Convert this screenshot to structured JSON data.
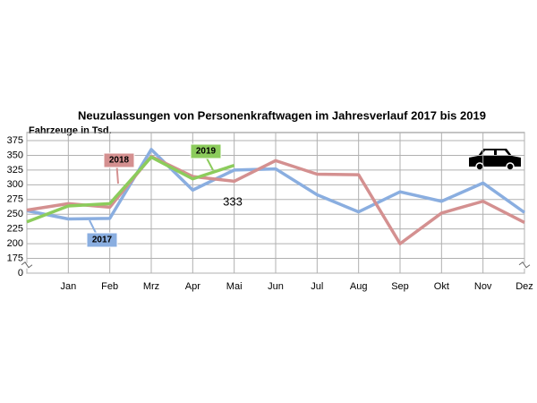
{
  "chart_data": {
    "type": "line",
    "title": "Neuzulassungen von Personenkraftwagen im Jahresverlauf 2017 bis 2019",
    "y_label": "Fahrzeuge in Tsd.",
    "categories": [
      null,
      "Jan",
      "Feb",
      "Mrz",
      "Apr",
      "Mai",
      "Jun",
      "Jul",
      "Aug",
      "Sep",
      "Okt",
      "Nov",
      "Dez"
    ],
    "series": [
      {
        "name": "2017",
        "color": "#8aaee0",
        "values": [
          256,
          242,
          243,
          360,
          291,
          325,
          327,
          283,
          254,
          288,
          272,
          303,
          253
        ]
      },
      {
        "name": "2018",
        "color": "#d49090",
        "values": [
          257,
          268,
          262,
          348,
          314,
          306,
          341,
          318,
          317,
          200,
          252,
          272,
          236
        ]
      },
      {
        "name": "2019",
        "color": "#8ccc5c",
        "values": [
          237,
          264,
          268,
          347,
          310,
          333,
          null,
          null,
          null,
          null,
          null,
          null,
          null
        ]
      }
    ],
    "annotation": "333",
    "ylim": [
      0,
      375
    ],
    "y_break": [
      0,
      150
    ],
    "yticks": [
      0,
      175,
      200,
      225,
      250,
      275,
      300,
      325,
      350,
      375
    ],
    "grid": true
  }
}
